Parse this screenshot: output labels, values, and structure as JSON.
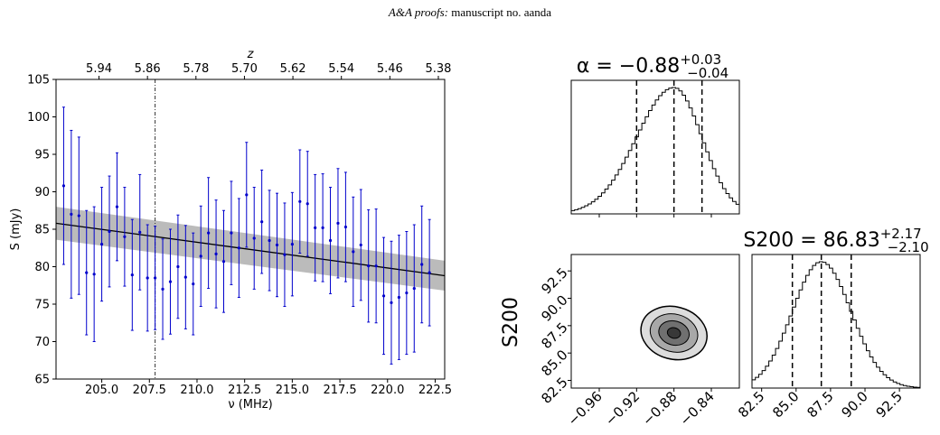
{
  "header": {
    "journal": "A&A proofs:",
    "manuscript": "manuscript no. aanda"
  },
  "colors": {
    "points": "#0000cc",
    "band": "#bbbbbb",
    "fit": "#000000"
  },
  "chart_data": [
    {
      "type": "scatter",
      "title": "",
      "xlabel": "ν (MHz)",
      "ylabel": "S (mJy)",
      "top_axis_label": "z",
      "xlim": [
        202.6,
        223.0
      ],
      "ylim": [
        65,
        105
      ],
      "xticks": [
        205.0,
        207.5,
        210.0,
        212.5,
        215.0,
        217.5,
        220.0,
        222.5
      ],
      "xtick_labels": [
        "205.0",
        "207.5",
        "210.0",
        "212.5",
        "215.0",
        "217.5",
        "220.0",
        "222.5"
      ],
      "yticks": [
        65,
        70,
        75,
        80,
        85,
        90,
        95,
        100,
        105
      ],
      "ytick_labels": [
        "65",
        "70",
        "75",
        "80",
        "85",
        "90",
        "95",
        "100",
        "105"
      ],
      "top_ticks_z": [
        5.94,
        5.86,
        5.78,
        5.7,
        5.62,
        5.54,
        5.46,
        5.38
      ],
      "top_tick_labels": [
        "5.94",
        "5.86",
        "5.78",
        "5.70",
        "5.62",
        "5.54",
        "5.46",
        "5.38"
      ],
      "vline_x": 207.8,
      "fit": {
        "x": [
          202.6,
          223.0
        ],
        "y": [
          85.8,
          78.8
        ],
        "band_lower": [
          83.6,
          76.8
        ],
        "band_upper": [
          88.0,
          80.8
        ]
      },
      "points": {
        "x": [
          203.0,
          203.4,
          203.8,
          204.2,
          204.6,
          205.0,
          205.4,
          205.8,
          206.2,
          206.6,
          207.0,
          207.4,
          207.8,
          208.2,
          208.6,
          209.0,
          209.4,
          209.8,
          210.2,
          210.6,
          211.0,
          211.4,
          211.8,
          212.2,
          212.6,
          213.0,
          213.4,
          213.8,
          214.2,
          214.6,
          215.0,
          215.4,
          215.8,
          216.2,
          216.6,
          217.0,
          217.4,
          217.8,
          218.2,
          218.6,
          219.0,
          219.4,
          219.8,
          220.2,
          220.6,
          221.0,
          221.4,
          221.8,
          222.2
        ],
        "y": [
          90.8,
          87.0,
          86.8,
          79.2,
          79.0,
          83.0,
          84.7,
          88.0,
          84.0,
          78.9,
          84.6,
          78.5,
          78.5,
          77.0,
          78.0,
          80.0,
          78.6,
          77.7,
          81.4,
          84.5,
          81.7,
          80.7,
          84.5,
          82.5,
          89.6,
          83.8,
          86.0,
          83.5,
          82.9,
          81.6,
          83.0,
          88.7,
          88.4,
          85.2,
          85.2,
          83.5,
          85.8,
          85.3,
          82.0,
          82.9,
          80.1,
          80.1,
          76.1,
          75.2,
          75.9,
          76.5,
          77.1,
          80.3,
          79.2
        ],
        "yerr": [
          10.5,
          11.2,
          10.5,
          8.3,
          9.0,
          7.6,
          7.4,
          7.2,
          6.6,
          7.4,
          7.7,
          7.1,
          6.9,
          6.7,
          7.0,
          6.9,
          6.9,
          6.8,
          6.7,
          7.4,
          7.2,
          6.8,
          6.9,
          6.6,
          7.0,
          6.8,
          6.9,
          6.7,
          6.9,
          6.9,
          6.9,
          6.9,
          7.0,
          7.1,
          7.2,
          7.1,
          7.3,
          7.3,
          7.3,
          7.4,
          7.5,
          7.6,
          7.8,
          8.2,
          8.3,
          8.2,
          8.5,
          7.8,
          7.1
        ]
      }
    },
    {
      "type": "bar",
      "title": "α = −0.88",
      "sup": "+0.03",
      "sub": "−0.04",
      "xlim": [
        -0.99,
        -0.81
      ],
      "xticks": [
        -0.96,
        -0.92,
        -0.88,
        -0.84
      ],
      "quantiles": [
        -0.92,
        -0.88,
        -0.85
      ],
      "peak": -0.88,
      "sigma_lo": 0.04,
      "sigma_hi": 0.03
    },
    {
      "type": "heatmap",
      "ylabel": "S200",
      "xlim": [
        -0.99,
        -0.81
      ],
      "ylim": [
        81.8,
        94.0
      ],
      "xticks": [
        -0.96,
        -0.92,
        -0.88,
        -0.84
      ],
      "xtick_labels": [
        "−0.96",
        "−0.92",
        "−0.88",
        "−0.84"
      ],
      "yticks": [
        82.5,
        85.0,
        87.5,
        90.0,
        92.5
      ],
      "ytick_labels": [
        "82.5",
        "85.0",
        "87.5",
        "90.0",
        "92.5"
      ],
      "center": [
        -0.88,
        86.83
      ],
      "levels": 4,
      "shades": [
        "#dcdcdc",
        "#a8a8a8",
        "#707070",
        "#383838"
      ]
    },
    {
      "type": "bar",
      "title": "S200 = 86.83",
      "sup": "+2.17",
      "sub": "−2.10",
      "xlim": [
        81.8,
        94.0
      ],
      "xticks": [
        82.5,
        85.0,
        87.5,
        90.0,
        92.5
      ],
      "xtick_labels": [
        "82.5",
        "85.0",
        "87.5",
        "90.0",
        "92.5"
      ],
      "quantiles": [
        84.73,
        86.83,
        89.0
      ],
      "peak": 86.83,
      "sigma_lo": 2.1,
      "sigma_hi": 2.17
    }
  ]
}
